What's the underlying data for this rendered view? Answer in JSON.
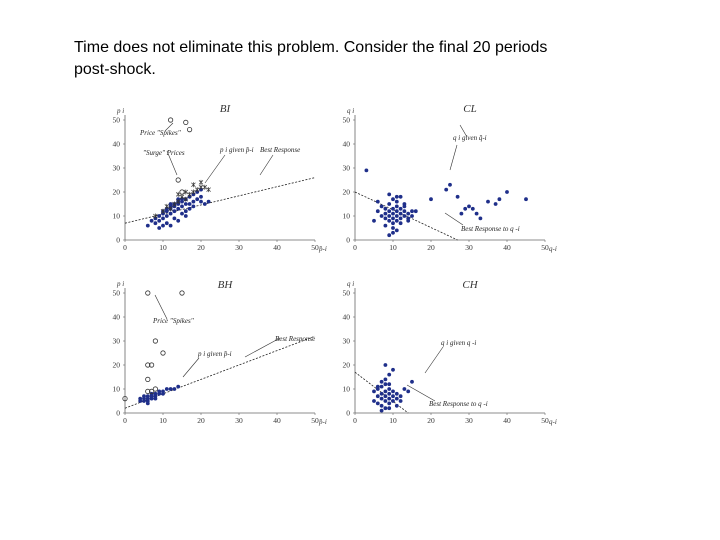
{
  "slide": {
    "text_line1": "Time does not eliminate this problem. Consider the final 20 periods",
    "text_line2": "post-shock."
  },
  "chart_data": [
    {
      "type": "scatter",
      "title": "BI",
      "xlabel": "p̄-i",
      "ylabel": "p i",
      "xlim": [
        0,
        50
      ],
      "ylim": [
        0,
        50
      ],
      "xticks": [
        "0",
        "10",
        "20",
        "30",
        "40",
        "50"
      ],
      "yticks": [
        "0",
        "10",
        "20",
        "30",
        "40",
        "50"
      ],
      "annotations": [
        "Price \"Spikes\"",
        "\"Surge\" Prices",
        "p i given p̄-i",
        "Best Response"
      ],
      "best_response_line": {
        "x": [
          0,
          50
        ],
        "y": [
          7,
          26
        ]
      },
      "series": [
        {
          "marker": "dot",
          "color": "#1f2f8a",
          "x": [
            6,
            7,
            8,
            8,
            9,
            9,
            10,
            10,
            10,
            11,
            11,
            11,
            12,
            12,
            12,
            13,
            13,
            13,
            14,
            14,
            14,
            15,
            15,
            15,
            16,
            16,
            17,
            17,
            18,
            18,
            19,
            19,
            20,
            20,
            21,
            22,
            9,
            12,
            14,
            16,
            18,
            11,
            13,
            15,
            17,
            10,
            12,
            14,
            16,
            20
          ],
          "y": [
            6,
            8,
            7,
            9,
            8,
            10,
            9,
            11,
            12,
            10,
            12,
            13,
            11,
            13,
            14,
            12,
            14,
            15,
            13,
            15,
            16,
            14,
            16,
            17,
            15,
            17,
            15,
            18,
            16,
            19,
            17,
            20,
            16,
            18,
            15,
            16,
            5,
            6,
            8,
            10,
            14,
            7,
            9,
            11,
            13,
            6,
            15,
            17,
            12,
            21
          ]
        },
        {
          "marker": "star",
          "color": "#333333",
          "x": [
            8,
            10,
            11,
            12,
            13,
            14,
            15,
            16,
            17,
            18,
            19,
            20,
            21,
            22,
            14,
            16,
            18,
            20
          ],
          "y": [
            10,
            12,
            14,
            13,
            15,
            16,
            18,
            17,
            19,
            20,
            21,
            22,
            22,
            21,
            19,
            20,
            23,
            24
          ]
        },
        {
          "marker": "ring",
          "color": "#333333",
          "x": [
            12,
            16,
            17,
            14,
            15
          ],
          "y": [
            50,
            49,
            46,
            25,
            20
          ]
        }
      ]
    },
    {
      "type": "scatter",
      "title": "CL",
      "xlabel": "q-i",
      "ylabel": "q i",
      "xlim": [
        0,
        50
      ],
      "ylim": [
        0,
        50
      ],
      "xticks": [
        "0",
        "10",
        "20",
        "30",
        "40",
        "50"
      ],
      "yticks": [
        "0",
        "10",
        "20",
        "30",
        "40",
        "50"
      ],
      "annotations": [
        "q i given q̄-i",
        "Best Response to q -i"
      ],
      "best_response_line": {
        "x": [
          0,
          27
        ],
        "y": [
          20,
          0
        ]
      },
      "series": [
        {
          "marker": "dot",
          "color": "#1f2f8a",
          "x": [
            3,
            5,
            6,
            7,
            7,
            8,
            8,
            8,
            9,
            9,
            9,
            10,
            10,
            10,
            10,
            11,
            11,
            11,
            11,
            12,
            12,
            12,
            13,
            13,
            13,
            14,
            14,
            15,
            15,
            9,
            10,
            11,
            12,
            8,
            10,
            12,
            14,
            6,
            9,
            11,
            13,
            10,
            16,
            20,
            25,
            27,
            28,
            30,
            31,
            33,
            35,
            37,
            38,
            40,
            24,
            29,
            32,
            45,
            9,
            11
          ],
          "y": [
            29,
            8,
            12,
            10,
            14,
            9,
            11,
            13,
            8,
            10,
            12,
            7,
            9,
            11,
            13,
            8,
            10,
            12,
            14,
            9,
            11,
            13,
            10,
            12,
            14,
            9,
            11,
            10,
            12,
            15,
            17,
            16,
            18,
            6,
            5,
            7,
            8,
            16,
            19,
            18,
            15,
            3,
            12,
            17,
            23,
            18,
            11,
            14,
            13,
            9,
            16,
            15,
            17,
            20,
            21,
            13,
            11,
            17,
            2,
            4
          ]
        }
      ]
    },
    {
      "type": "scatter",
      "title": "BH",
      "xlabel": "p̄-i",
      "ylabel": "p i",
      "xlim": [
        0,
        50
      ],
      "ylim": [
        0,
        50
      ],
      "xticks": [
        "0",
        "10",
        "20",
        "30",
        "40",
        "50"
      ],
      "yticks": [
        "0",
        "10",
        "20",
        "30",
        "40",
        "50"
      ],
      "annotations": [
        "Price \"Spikes\"",
        "Best Response",
        "p i given p̄-i"
      ],
      "best_response_line": {
        "x": [
          0,
          50
        ],
        "y": [
          2,
          32
        ]
      },
      "series": [
        {
          "marker": "dot",
          "color": "#1f2f8a",
          "x": [
            4,
            4,
            5,
            5,
            5,
            6,
            6,
            6,
            7,
            7,
            7,
            8,
            8,
            9,
            9,
            10,
            11,
            12,
            13,
            14,
            6,
            8,
            10
          ],
          "y": [
            5,
            6,
            5,
            6,
            7,
            5,
            6,
            7,
            6,
            7,
            8,
            7,
            8,
            8,
            9,
            9,
            10,
            10,
            10,
            11,
            4,
            6,
            8
          ]
        },
        {
          "marker": "ring",
          "color": "#333333",
          "x": [
            6,
            15,
            8,
            6,
            7,
            10,
            6,
            0,
            6,
            7,
            8
          ],
          "y": [
            50,
            50,
            30,
            20,
            20,
            25,
            14,
            6,
            9,
            9,
            10
          ]
        }
      ]
    },
    {
      "type": "scatter",
      "title": "CH",
      "xlabel": "q-i",
      "ylabel": "q i",
      "xlim": [
        0,
        50
      ],
      "ylim": [
        0,
        50
      ],
      "xticks": [
        "0",
        "10",
        "20",
        "30",
        "40",
        "50"
      ],
      "yticks": [
        "0",
        "10",
        "20",
        "30",
        "40",
        "50"
      ],
      "annotations": [
        "q i given q -i",
        "Best Response to q -i"
      ],
      "best_response_line": {
        "x": [
          0,
          14
        ],
        "y": [
          17,
          0
        ]
      },
      "series": [
        {
          "marker": "dot",
          "color": "#1f2f8a",
          "x": [
            5,
            5,
            6,
            6,
            6,
            7,
            7,
            7,
            7,
            8,
            8,
            8,
            8,
            8,
            9,
            9,
            9,
            9,
            10,
            10,
            10,
            11,
            11,
            12,
            7,
            8,
            9,
            6,
            9,
            10,
            8,
            12,
            15,
            13,
            7,
            9,
            11,
            14
          ],
          "y": [
            5,
            9,
            4,
            7,
            10,
            3,
            6,
            8,
            11,
            2,
            5,
            7,
            9,
            12,
            4,
            6,
            8,
            10,
            5,
            7,
            9,
            6,
            8,
            7,
            13,
            14,
            12,
            11,
            16,
            18,
            20,
            5,
            13,
            10,
            1,
            2,
            3,
            9
          ]
        }
      ]
    }
  ]
}
